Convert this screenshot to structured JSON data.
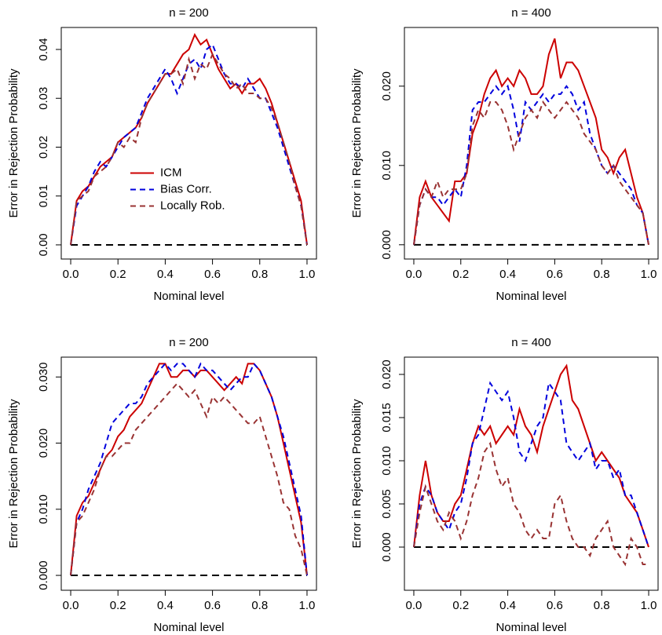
{
  "chart_data": [
    {
      "type": "line",
      "title": "n = 200",
      "xlabel": "Nominal level",
      "ylabel": "Error in Rejection Probability",
      "legend": "center-left",
      "hline": 0,
      "xlim": [
        -0.04,
        1.04
      ],
      "ylim": [
        -0.0029,
        0.0445
      ],
      "xticks": [
        {
          "value": 0,
          "label": "0.0"
        },
        {
          "value": 0.2,
          "label": "0.2"
        },
        {
          "value": 0.4,
          "label": "0.4"
        },
        {
          "value": 0.6,
          "label": "0.6"
        },
        {
          "value": 0.8,
          "label": "0.8"
        },
        {
          "value": 1,
          "label": "1.0"
        }
      ],
      "yticks": [
        {
          "value": 0,
          "label": "0.00"
        },
        {
          "value": 0.01,
          "label": "0.01"
        },
        {
          "value": 0.02,
          "label": "0.02"
        },
        {
          "value": 0.03,
          "label": "0.03"
        },
        {
          "value": 0.04,
          "label": "0.04"
        }
      ],
      "x": [
        0,
        0.025,
        0.05,
        0.075,
        0.1,
        0.125,
        0.15,
        0.175,
        0.2,
        0.225,
        0.25,
        0.275,
        0.3,
        0.325,
        0.35,
        0.375,
        0.4,
        0.425,
        0.45,
        0.475,
        0.5,
        0.525,
        0.55,
        0.575,
        0.6,
        0.625,
        0.65,
        0.675,
        0.7,
        0.725,
        0.75,
        0.775,
        0.8,
        0.825,
        0.85,
        0.875,
        0.9,
        0.925,
        0.95,
        0.975,
        1
      ],
      "series": [
        {
          "name": "ICM",
          "color": "#cc0000",
          "linestyle": "solid",
          "values": [
            0,
            0.009,
            0.011,
            0.012,
            0.014,
            0.016,
            0.017,
            0.018,
            0.021,
            0.022,
            0.023,
            0.024,
            0.026,
            0.029,
            0.031,
            0.033,
            0.035,
            0.035,
            0.037,
            0.039,
            0.04,
            0.043,
            0.041,
            0.042,
            0.039,
            0.036,
            0.034,
            0.032,
            0.033,
            0.031,
            0.033,
            0.033,
            0.034,
            0.032,
            0.029,
            0.025,
            0.021,
            0.017,
            0.013,
            0.009,
            0
          ]
        },
        {
          "name": "Bias Corr.",
          "color": "#0000dd",
          "linestyle": "dashed",
          "values": [
            0,
            0.008,
            0.01,
            0.012,
            0.015,
            0.017,
            0.016,
            0.018,
            0.02,
            0.022,
            0.023,
            0.024,
            0.027,
            0.03,
            0.032,
            0.034,
            0.036,
            0.034,
            0.031,
            0.034,
            0.037,
            0.038,
            0.036,
            0.04,
            0.041,
            0.038,
            0.035,
            0.033,
            0.033,
            0.032,
            0.034,
            0.032,
            0.03,
            0.03,
            0.027,
            0.024,
            0.02,
            0.016,
            0.012,
            0.008,
            0
          ]
        },
        {
          "name": "Locally Rob.",
          "color": "#993333",
          "linestyle": "dashed",
          "values": [
            0,
            0.009,
            0.01,
            0.011,
            0.014,
            0.015,
            0.016,
            0.018,
            0.021,
            0.02,
            0.022,
            0.021,
            0.026,
            0.029,
            0.031,
            0.033,
            0.035,
            0.035,
            0.036,
            0.033,
            0.038,
            0.034,
            0.037,
            0.036,
            0.039,
            0.037,
            0.035,
            0.034,
            0.032,
            0.033,
            0.031,
            0.031,
            0.03,
            0.03,
            0.028,
            0.025,
            0.021,
            0.017,
            0.012,
            0.008,
            0
          ]
        }
      ]
    },
    {
      "type": "line",
      "title": "n = 400",
      "xlabel": "Nominal level",
      "ylabel": "Error in Rejection Probability",
      "hline": 0,
      "xlim": [
        -0.04,
        1.04
      ],
      "ylim": [
        -0.0018,
        0.0274
      ],
      "xticks": [
        {
          "value": 0,
          "label": "0.0"
        },
        {
          "value": 0.2,
          "label": "0.2"
        },
        {
          "value": 0.4,
          "label": "0.4"
        },
        {
          "value": 0.6,
          "label": "0.6"
        },
        {
          "value": 0.8,
          "label": "0.8"
        },
        {
          "value": 1,
          "label": "1.0"
        }
      ],
      "yticks": [
        {
          "value": 0,
          "label": "0.000"
        },
        {
          "value": 0.01,
          "label": "0.010"
        },
        {
          "value": 0.02,
          "label": "0.020"
        }
      ],
      "x": [
        0,
        0.025,
        0.05,
        0.075,
        0.1,
        0.125,
        0.15,
        0.175,
        0.2,
        0.225,
        0.25,
        0.275,
        0.3,
        0.325,
        0.35,
        0.375,
        0.4,
        0.425,
        0.45,
        0.475,
        0.5,
        0.525,
        0.55,
        0.575,
        0.6,
        0.625,
        0.65,
        0.675,
        0.7,
        0.725,
        0.75,
        0.775,
        0.8,
        0.825,
        0.85,
        0.875,
        0.9,
        0.925,
        0.95,
        0.975,
        1
      ],
      "series": [
        {
          "color": "#cc0000",
          "linestyle": "solid",
          "values": [
            0,
            0.006,
            0.008,
            0.006,
            0.005,
            0.004,
            0.003,
            0.008,
            0.008,
            0.009,
            0.014,
            0.016,
            0.019,
            0.021,
            0.022,
            0.02,
            0.021,
            0.02,
            0.022,
            0.021,
            0.019,
            0.019,
            0.02,
            0.024,
            0.026,
            0.021,
            0.023,
            0.023,
            0.022,
            0.02,
            0.018,
            0.016,
            0.012,
            0.011,
            0.009,
            0.011,
            0.012,
            0.009,
            0.006,
            0.004,
            0
          ]
        },
        {
          "color": "#0000dd",
          "linestyle": "dashed",
          "values": [
            0,
            0.005,
            0.007,
            0.006,
            0.006,
            0.005,
            0.006,
            0.007,
            0.006,
            0.01,
            0.017,
            0.018,
            0.018,
            0.019,
            0.02,
            0.019,
            0.02,
            0.017,
            0.013,
            0.018,
            0.017,
            0.018,
            0.019,
            0.018,
            0.019,
            0.019,
            0.02,
            0.019,
            0.017,
            0.018,
            0.014,
            0.012,
            0.01,
            0.009,
            0.01,
            0.009,
            0.008,
            0.007,
            0.005,
            0.004,
            0
          ]
        },
        {
          "color": "#993333",
          "linestyle": "dashed",
          "values": [
            0,
            0.005,
            0.007,
            0.006,
            0.008,
            0.006,
            0.007,
            0.007,
            0.007,
            0.009,
            0.015,
            0.017,
            0.016,
            0.018,
            0.018,
            0.017,
            0.015,
            0.012,
            0.014,
            0.016,
            0.017,
            0.016,
            0.018,
            0.017,
            0.016,
            0.017,
            0.018,
            0.017,
            0.016,
            0.014,
            0.013,
            0.012,
            0.01,
            0.009,
            0.01,
            0.008,
            0.007,
            0.006,
            0.005,
            0.004,
            0
          ]
        }
      ]
    },
    {
      "type": "line",
      "title": "n = 200",
      "xlabel": "Nominal level",
      "ylabel": "Error in Rejection Probability",
      "hline": 0,
      "xlim": [
        -0.04,
        1.04
      ],
      "ylim": [
        -0.00225,
        0.033
      ],
      "xticks": [
        {
          "value": 0,
          "label": "0.0"
        },
        {
          "value": 0.2,
          "label": "0.2"
        },
        {
          "value": 0.4,
          "label": "0.4"
        },
        {
          "value": 0.6,
          "label": "0.6"
        },
        {
          "value": 0.8,
          "label": "0.8"
        },
        {
          "value": 1,
          "label": "1.0"
        }
      ],
      "yticks": [
        {
          "value": 0,
          "label": "0.000"
        },
        {
          "value": 0.01,
          "label": "0.010"
        },
        {
          "value": 0.02,
          "label": "0.020"
        },
        {
          "value": 0.03,
          "label": "0.030"
        }
      ],
      "x": [
        0,
        0.025,
        0.05,
        0.075,
        0.1,
        0.125,
        0.15,
        0.175,
        0.2,
        0.225,
        0.25,
        0.275,
        0.3,
        0.325,
        0.35,
        0.375,
        0.4,
        0.425,
        0.45,
        0.475,
        0.5,
        0.525,
        0.55,
        0.575,
        0.6,
        0.625,
        0.65,
        0.675,
        0.7,
        0.725,
        0.75,
        0.775,
        0.8,
        0.825,
        0.85,
        0.875,
        0.9,
        0.925,
        0.95,
        0.975,
        1
      ],
      "series": [
        {
          "color": "#cc0000",
          "linestyle": "solid",
          "values": [
            0,
            0.009,
            0.011,
            0.012,
            0.014,
            0.016,
            0.018,
            0.019,
            0.021,
            0.022,
            0.024,
            0.025,
            0.026,
            0.028,
            0.03,
            0.032,
            0.032,
            0.03,
            0.03,
            0.031,
            0.031,
            0.03,
            0.031,
            0.031,
            0.03,
            0.029,
            0.028,
            0.029,
            0.03,
            0.029,
            0.032,
            0.032,
            0.031,
            0.029,
            0.027,
            0.024,
            0.02,
            0.016,
            0.012,
            0.008,
            0
          ]
        },
        {
          "color": "#0000dd",
          "linestyle": "dashed",
          "values": [
            0,
            0.008,
            0.01,
            0.013,
            0.015,
            0.017,
            0.02,
            0.023,
            0.024,
            0.025,
            0.026,
            0.026,
            0.027,
            0.029,
            0.03,
            0.031,
            0.032,
            0.031,
            0.032,
            0.032,
            0.031,
            0.03,
            0.032,
            0.031,
            0.031,
            0.03,
            0.029,
            0.028,
            0.029,
            0.03,
            0.03,
            0.032,
            0.031,
            0.029,
            0.027,
            0.024,
            0.021,
            0.017,
            0.013,
            0.009,
            0
          ]
        },
        {
          "color": "#993333",
          "linestyle": "dashed",
          "values": [
            0,
            0.008,
            0.009,
            0.011,
            0.013,
            0.016,
            0.018,
            0.018,
            0.019,
            0.02,
            0.02,
            0.022,
            0.023,
            0.024,
            0.025,
            0.026,
            0.027,
            0.028,
            0.029,
            0.028,
            0.027,
            0.028,
            0.026,
            0.024,
            0.027,
            0.026,
            0.027,
            0.026,
            0.025,
            0.024,
            0.023,
            0.023,
            0.024,
            0.021,
            0.018,
            0.015,
            0.011,
            0.01,
            0.006,
            0.004,
            0
          ]
        }
      ]
    },
    {
      "type": "line",
      "title": "n = 400",
      "xlabel": "Nominal level",
      "ylabel": "Error in Rejection Probability",
      "hline": 0,
      "xlim": [
        -0.04,
        1.04
      ],
      "ylim": [
        -0.005,
        0.022
      ],
      "xticks": [
        {
          "value": 0,
          "label": "0.0"
        },
        {
          "value": 0.2,
          "label": "0.2"
        },
        {
          "value": 0.4,
          "label": "0.4"
        },
        {
          "value": 0.6,
          "label": "0.6"
        },
        {
          "value": 0.8,
          "label": "0.8"
        },
        {
          "value": 1,
          "label": "1.0"
        }
      ],
      "yticks": [
        {
          "value": 0,
          "label": "0.000"
        },
        {
          "value": 0.005,
          "label": "0.005"
        },
        {
          "value": 0.01,
          "label": "0.010"
        },
        {
          "value": 0.015,
          "label": "0.015"
        },
        {
          "value": 0.02,
          "label": "0.020"
        }
      ],
      "x": [
        0,
        0.025,
        0.05,
        0.075,
        0.1,
        0.125,
        0.15,
        0.175,
        0.2,
        0.225,
        0.25,
        0.275,
        0.3,
        0.325,
        0.35,
        0.375,
        0.4,
        0.425,
        0.45,
        0.475,
        0.5,
        0.525,
        0.55,
        0.575,
        0.6,
        0.625,
        0.65,
        0.675,
        0.7,
        0.725,
        0.75,
        0.775,
        0.8,
        0.825,
        0.85,
        0.875,
        0.9,
        0.925,
        0.95,
        0.975,
        1
      ],
      "series": [
        {
          "color": "#cc0000",
          "linestyle": "solid",
          "values": [
            0,
            0.006,
            0.01,
            0.006,
            0.004,
            0.003,
            0.003,
            0.005,
            0.006,
            0.009,
            0.012,
            0.014,
            0.013,
            0.014,
            0.012,
            0.013,
            0.014,
            0.013,
            0.016,
            0.014,
            0.013,
            0.011,
            0.014,
            0.016,
            0.018,
            0.02,
            0.021,
            0.017,
            0.016,
            0.014,
            0.012,
            0.01,
            0.011,
            0.01,
            0.009,
            0.008,
            0.006,
            0.005,
            0.004,
            0.002,
            0
          ]
        },
        {
          "color": "#0000dd",
          "linestyle": "dashed",
          "values": [
            0,
            0.005,
            0.007,
            0.006,
            0.004,
            0.003,
            0.002,
            0.004,
            0.005,
            0.008,
            0.012,
            0.013,
            0.016,
            0.019,
            0.018,
            0.017,
            0.018,
            0.015,
            0.011,
            0.01,
            0.012,
            0.014,
            0.015,
            0.019,
            0.018,
            0.017,
            0.012,
            0.011,
            0.01,
            0.011,
            0.012,
            0.009,
            0.01,
            0.01,
            0.008,
            0.009,
            0.006,
            0.006,
            0.004,
            0.002,
            0
          ]
        },
        {
          "color": "#993333",
          "linestyle": "dashed",
          "values": [
            0,
            0.004,
            0.007,
            0.005,
            0.003,
            0.002,
            0.004,
            0.003,
            0.001,
            0.003,
            0.006,
            0.008,
            0.011,
            0.012,
            0.009,
            0.007,
            0.008,
            0.005,
            0.004,
            0.002,
            0.001,
            0.002,
            0.001,
            0.001,
            0.005,
            0.006,
            0.003,
            0.001,
            0,
            0,
            -0.001,
            0.001,
            0.002,
            0.003,
            0,
            -0.001,
            -0.002,
            0.001,
            0,
            -0.002,
            -0.002
          ]
        }
      ]
    }
  ]
}
